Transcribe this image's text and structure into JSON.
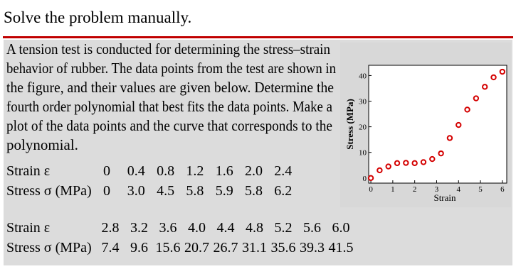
{
  "header": {
    "title": "Solve the problem manually."
  },
  "problem": {
    "lines": [
      "A tension test is conducted for determining the stress–strain",
      "behavior of rubber. The data points from the test are shown in",
      "the figure, and their values are given below. Determine the",
      "fourth order polynomial that best fits the data points. Make a",
      "plot of the data points and the curve that corresponds to the",
      "polynomial."
    ]
  },
  "tables": [
    {
      "rows": [
        {
          "label": "Strain ε",
          "values": [
            "0",
            "0.4",
            "0.8",
            "1.2",
            "1.6",
            "2.0",
            "2.4"
          ]
        },
        {
          "label": "Stress σ (MPa)",
          "values": [
            "0",
            "3.0",
            "4.5",
            "5.8",
            "5.9",
            "5.8",
            "6.2"
          ]
        }
      ]
    },
    {
      "rows": [
        {
          "label": "Strain ε",
          "values": [
            "2.8",
            "3.2",
            "3.6",
            "4.0",
            "4.4",
            "4.8",
            "5.2",
            "5.6",
            "6.0"
          ]
        },
        {
          "label": "Stress σ (MPa)",
          "values": [
            "7.4",
            "9.6",
            "15.6",
            "20.7",
            "26.7",
            "31.1",
            "35.6",
            "39.3",
            "41.5"
          ]
        }
      ]
    }
  ],
  "chart_data": {
    "type": "scatter",
    "xlabel": "Strain",
    "ylabel": "Stress (MPa)",
    "x": [
      0,
      0.4,
      0.8,
      1.2,
      1.6,
      2.0,
      2.4,
      2.8,
      3.2,
      3.6,
      4.0,
      4.4,
      4.8,
      5.2,
      5.6,
      6.0
    ],
    "series": [
      {
        "color": "#d40000",
        "values": [
          0,
          3.0,
          4.5,
          5.8,
          5.9,
          5.8,
          6.2,
          7.4,
          9.6,
          15.6,
          20.7,
          26.7,
          31.1,
          35.6,
          39.3,
          41.5
        ]
      }
    ],
    "xlim": [
      -0.1,
      6.2
    ],
    "ylim": [
      -2,
      44
    ],
    "xticks": [
      0,
      1,
      2,
      3,
      4,
      5,
      6
    ],
    "yticks": [
      0,
      10,
      20,
      30,
      40
    ]
  }
}
